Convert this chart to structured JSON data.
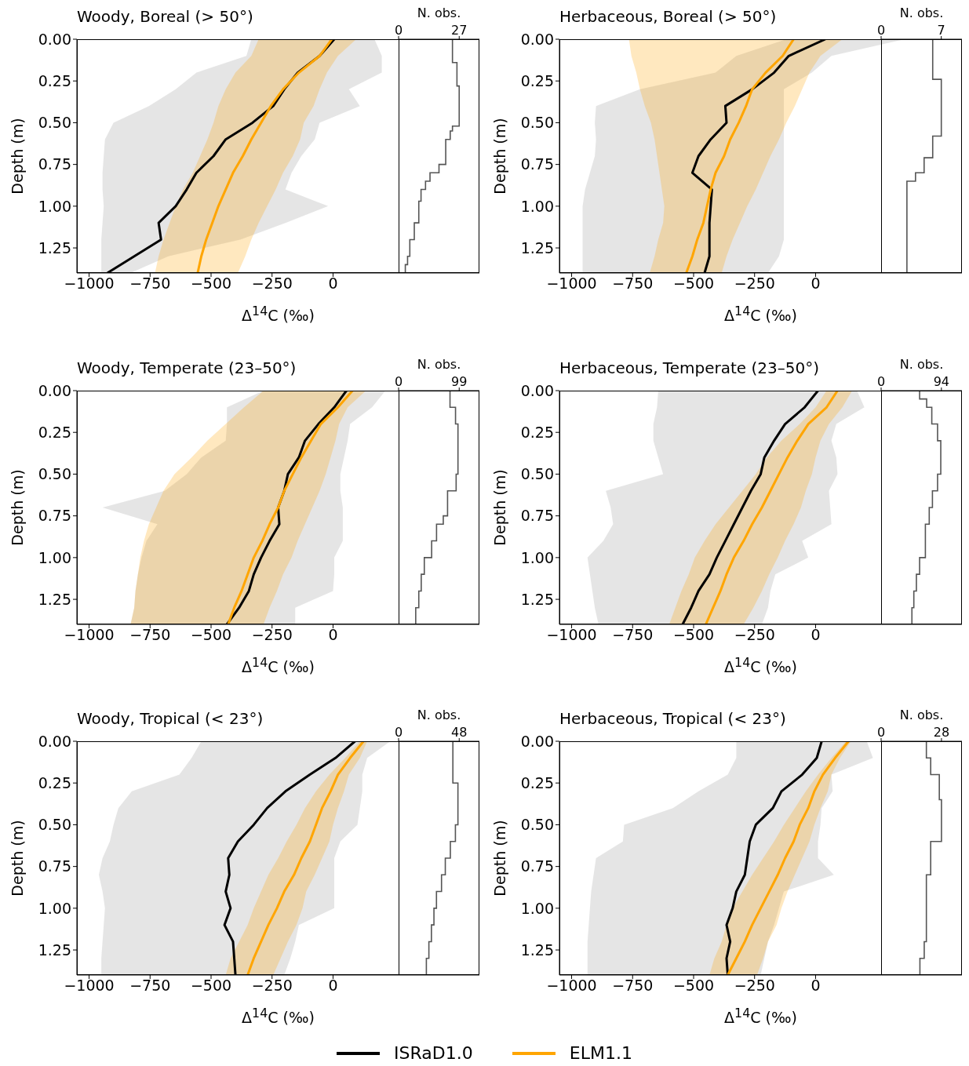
{
  "chart_data": [
    {
      "type": "line",
      "orientation": "horizontal",
      "title": "Woody, Boreal (> 50°)",
      "xlabel": "Δ$^{14}$C (‰)",
      "ylabel": "Depth (m)",
      "x": [
        0,
        0.1,
        0.2,
        0.3,
        0.4,
        0.5,
        0.6,
        0.7,
        0.8,
        0.9,
        1.0,
        1.1,
        1.2,
        1.3,
        1.4
      ],
      "xlim": [
        -1050,
        600
      ],
      "xticks": [
        {
          "value": -1000,
          "label": "−1000"
        },
        {
          "value": -750,
          "label": "−750"
        },
        {
          "value": -500,
          "label": "−500"
        },
        {
          "value": -250,
          "label": "−250"
        },
        0
      ],
      "ylim": [
        1.4,
        0
      ],
      "yticks": [
        {
          "value": 0,
          "label": "0.00"
        },
        {
          "value": 0.25,
          "label": "0.25"
        },
        {
          "value": 0.5,
          "label": "0.50"
        },
        {
          "value": 0.75,
          "label": "0.75"
        },
        {
          "value": 1,
          "label": "1.00"
        },
        {
          "value": 1.25,
          "label": "1.25"
        }
      ],
      "series": [
        {
          "color": "#000000",
          "values": [
            5,
            -55,
            -145,
            -200,
            -245,
            -330,
            -440,
            -490,
            -560,
            -600,
            -645,
            -715,
            -705,
            -815,
            -925
          ],
          "lower": [
            -335,
            -355,
            -560,
            -645,
            -755,
            -900,
            -935,
            -940,
            -945,
            -945,
            -940,
            -945,
            -950,
            -950,
            -950
          ],
          "upper": [
            170,
            200,
            200,
            65,
            110,
            -55,
            -75,
            -130,
            -170,
            -195,
            -20,
            -195,
            -380,
            -675,
            -830
          ]
        },
        {
          "color": "#ffa500",
          "values": [
            -5,
            -55,
            -140,
            -205,
            -255,
            -295,
            -335,
            -370,
            -410,
            -440,
            -470,
            -495,
            -520,
            -540,
            -555
          ],
          "lower": [
            -305,
            -335,
            -400,
            -440,
            -470,
            -490,
            -515,
            -545,
            -575,
            -615,
            -645,
            -670,
            -695,
            -715,
            -730
          ],
          "upper": [
            95,
            20,
            -25,
            -55,
            -80,
            -120,
            -135,
            -165,
            -205,
            -235,
            -270,
            -305,
            -335,
            -360,
            -390
          ]
        }
      ]
    },
    {
      "type": "step",
      "orientation": "horizontal",
      "title": "N. obs.",
      "xlim": [
        0,
        36
      ],
      "xticks": [
        0,
        27
      ],
      "ylim": [
        1.4,
        0
      ],
      "tick_labels": "x",
      "series": [
        {
          "color": "#555555",
          "x": [
            0,
            0.14,
            0.28,
            0.52,
            0.55,
            0.6,
            0.75,
            0.8,
            0.85,
            0.9,
            0.97,
            1.1,
            1.2,
            1.3,
            1.35,
            1.4
          ],
          "values": [
            24,
            26,
            27,
            24,
            23,
            21,
            18,
            14,
            12,
            10,
            9,
            7,
            5,
            4,
            3,
            3
          ]
        }
      ]
    },
    {
      "type": "line",
      "orientation": "horizontal",
      "title": "Herbaceous, Boreal (> 50°)",
      "xlabel": "Δ$^{14}$C (‰)",
      "ylabel": "Depth (m)",
      "x": [
        0,
        0.1,
        0.2,
        0.3,
        0.4,
        0.5,
        0.6,
        0.7,
        0.8,
        0.9,
        1.0,
        1.1,
        1.2,
        1.3,
        1.4
      ],
      "xlim": [
        -1050,
        600
      ],
      "xticks": [
        {
          "value": -1000,
          "label": "−1000"
        },
        {
          "value": -750,
          "label": "−750"
        },
        {
          "value": -500,
          "label": "−500"
        },
        {
          "value": -250,
          "label": "−250"
        },
        0
      ],
      "ylim": [
        1.4,
        0
      ],
      "yticks": [
        {
          "value": 0,
          "label": "0.00"
        },
        {
          "value": 0.25,
          "label": "0.25"
        },
        {
          "value": 0.5,
          "label": "0.50"
        },
        {
          "value": 0.75,
          "label": "0.75"
        },
        {
          "value": 1,
          "label": "1.00"
        },
        {
          "value": 1.25,
          "label": "1.25"
        }
      ],
      "series": [
        {
          "color": "#000000",
          "values": [
            40,
            -110,
            -170,
            -260,
            -370,
            -365,
            -430,
            -480,
            -505,
            -425,
            -430,
            -435,
            -435,
            -435,
            -455
          ],
          "lower": [
            -120,
            -325,
            -410,
            -720,
            -900,
            -905,
            -900,
            -905,
            -925,
            -945,
            -955,
            -955,
            -955,
            -955,
            -955
          ],
          "upper": [
            365,
            65,
            -15,
            -130,
            -130,
            -130,
            -130,
            -130,
            -130,
            -130,
            -130,
            -130,
            -130,
            -150,
            -195
          ]
        },
        {
          "color": "#ffa500",
          "values": [
            -90,
            -135,
            -205,
            -260,
            -285,
            -315,
            -350,
            -375,
            -410,
            -430,
            -445,
            -460,
            -485,
            -505,
            -530
          ],
          "lower": [
            -765,
            -755,
            -735,
            -720,
            -700,
            -675,
            -660,
            -650,
            -640,
            -630,
            -620,
            -625,
            -645,
            -660,
            -680
          ],
          "upper": [
            110,
            20,
            -25,
            -55,
            -85,
            -120,
            -150,
            -185,
            -215,
            -245,
            -280,
            -310,
            -340,
            -365,
            -385
          ]
        }
      ]
    },
    {
      "type": "step",
      "orientation": "horizontal",
      "title": "N. obs.",
      "xlim": [
        0,
        9.4
      ],
      "xticks": [
        0,
        7
      ],
      "ylim": [
        1.4,
        0
      ],
      "tick_labels": "x",
      "series": [
        {
          "color": "#555555",
          "x": [
            0,
            0.24,
            0.58,
            0.71,
            0.8,
            0.85,
            1.4
          ],
          "values": [
            6,
            7,
            6,
            5,
            4,
            3,
            3
          ]
        }
      ]
    },
    {
      "type": "line",
      "orientation": "horizontal",
      "title": "Woody, Temperate (23–50°)",
      "xlabel": "Δ$^{14}$C (‰)",
      "ylabel": "Depth (m)",
      "x": [
        0,
        0.1,
        0.2,
        0.3,
        0.4,
        0.5,
        0.6,
        0.7,
        0.8,
        0.9,
        1.0,
        1.1,
        1.2,
        1.3,
        1.4
      ],
      "xlim": [
        -1050,
        600
      ],
      "xticks": [
        {
          "value": -1000,
          "label": "−1000"
        },
        {
          "value": -750,
          "label": "−750"
        },
        {
          "value": -500,
          "label": "−500"
        },
        {
          "value": -250,
          "label": "−250"
        },
        0
      ],
      "ylim": [
        1.4,
        0
      ],
      "yticks": [
        {
          "value": 0,
          "label": "0.00"
        },
        {
          "value": 0.25,
          "label": "0.25"
        },
        {
          "value": 0.5,
          "label": "0.50"
        },
        {
          "value": 0.75,
          "label": "0.75"
        },
        {
          "value": 1,
          "label": "1.00"
        },
        {
          "value": 1.25,
          "label": "1.25"
        }
      ],
      "series": [
        {
          "color": "#000000",
          "values": [
            55,
            5,
            -60,
            -115,
            -140,
            -185,
            -200,
            -225,
            -220,
            -260,
            -295,
            -325,
            -345,
            -385,
            -435
          ],
          "lower": [
            -285,
            -435,
            -435,
            -440,
            -540,
            -600,
            -690,
            -945,
            -720,
            -765,
            -785,
            -800,
            -810,
            -815,
            -830
          ],
          "upper": [
            215,
            160,
            70,
            60,
            45,
            30,
            30,
            40,
            40,
            40,
            5,
            5,
            0,
            -155,
            -155
          ]
        },
        {
          "color": "#ffa500",
          "values": [
            80,
            20,
            -50,
            -90,
            -130,
            -165,
            -200,
            -225,
            -260,
            -290,
            -325,
            -350,
            -375,
            -405,
            -430
          ],
          "lower": [
            -285,
            -365,
            -440,
            -515,
            -580,
            -650,
            -695,
            -725,
            -755,
            -775,
            -790,
            -800,
            -810,
            -815,
            -830
          ],
          "upper": [
            135,
            60,
            25,
            10,
            -10,
            -30,
            -55,
            -85,
            -115,
            -145,
            -170,
            -205,
            -230,
            -260,
            -285
          ]
        }
      ]
    },
    {
      "type": "step",
      "orientation": "horizontal",
      "title": "N. obs.",
      "xlim": [
        0,
        132
      ],
      "xticks": [
        0,
        99
      ],
      "ylim": [
        1.4,
        0
      ],
      "tick_labels": "x",
      "series": [
        {
          "color": "#555555",
          "x": [
            0,
            0.1,
            0.2,
            0.5,
            0.6,
            0.75,
            0.8,
            0.9,
            1.0,
            1.1,
            1.2,
            1.3,
            1.4
          ],
          "values": [
            84,
            93,
            97,
            94,
            80,
            73,
            62,
            54,
            42,
            37,
            33,
            28,
            28
          ]
        }
      ]
    },
    {
      "type": "line",
      "orientation": "horizontal",
      "title": "Herbaceous, Temperate (23–50°)",
      "xlabel": "Δ$^{14}$C (‰)",
      "ylabel": "Depth (m)",
      "x": [
        0,
        0.1,
        0.2,
        0.3,
        0.4,
        0.5,
        0.6,
        0.7,
        0.8,
        0.9,
        1.0,
        1.1,
        1.2,
        1.3,
        1.4
      ],
      "xlim": [
        -1050,
        600
      ],
      "xticks": [
        {
          "value": -1000,
          "label": "−1000"
        },
        {
          "value": -750,
          "label": "−750"
        },
        {
          "value": -500,
          "label": "−500"
        },
        {
          "value": -250,
          "label": "−250"
        },
        0
      ],
      "ylim": [
        1.4,
        0
      ],
      "yticks": [
        {
          "value": 0,
          "label": "0.00"
        },
        {
          "value": 0.25,
          "label": "0.25"
        },
        {
          "value": 0.5,
          "label": "0.50"
        },
        {
          "value": 0.75,
          "label": "0.75"
        },
        {
          "value": 1,
          "label": "1.00"
        },
        {
          "value": 1.25,
          "label": "1.25"
        }
      ],
      "series": [
        {
          "color": "#000000",
          "values": [
            10,
            -45,
            -125,
            -170,
            -210,
            -225,
            -265,
            -300,
            -335,
            -370,
            -405,
            -435,
            -480,
            -510,
            -545
          ],
          "lower": [
            -645,
            -650,
            -665,
            -665,
            -645,
            -625,
            -860,
            -840,
            -830,
            -870,
            -935,
            -925,
            -915,
            -905,
            -890
          ],
          "upper": [
            170,
            200,
            85,
            65,
            85,
            90,
            55,
            60,
            65,
            -55,
            -30,
            -165,
            -185,
            -195,
            -220
          ]
        },
        {
          "color": "#ffa500",
          "values": [
            90,
            45,
            -30,
            -75,
            -115,
            -150,
            -185,
            -220,
            -260,
            -295,
            -335,
            -365,
            -390,
            -420,
            -450
          ],
          "lower": [
            45,
            0,
            -65,
            -140,
            -200,
            -245,
            -300,
            -355,
            -410,
            -455,
            -495,
            -520,
            -550,
            -575,
            -600
          ],
          "upper": [
            150,
            110,
            55,
            20,
            0,
            -15,
            -40,
            -60,
            -90,
            -125,
            -155,
            -190,
            -220,
            -255,
            -295
          ]
        }
      ]
    },
    {
      "type": "step",
      "orientation": "horizontal",
      "title": "N. obs.",
      "xlim": [
        0,
        126
      ],
      "xticks": [
        0,
        94
      ],
      "ylim": [
        1.4,
        0
      ],
      "tick_labels": "x",
      "series": [
        {
          "color": "#555555",
          "x": [
            0,
            0.05,
            0.1,
            0.2,
            0.3,
            0.5,
            0.6,
            0.7,
            0.8,
            1.0,
            1.1,
            1.2,
            1.3,
            1.4
          ],
          "values": [
            60,
            71,
            79,
            88,
            93,
            88,
            80,
            75,
            69,
            60,
            55,
            51,
            48,
            48
          ]
        }
      ]
    },
    {
      "type": "line",
      "orientation": "horizontal",
      "title": "Woody, Tropical (< 23°)",
      "xlabel": "Δ$^{14}$C (‰)",
      "ylabel": "Depth (m)",
      "x": [
        0,
        0.1,
        0.2,
        0.3,
        0.4,
        0.5,
        0.6,
        0.7,
        0.8,
        0.9,
        1.0,
        1.1,
        1.2,
        1.3,
        1.4
      ],
      "xlim": [
        -1050,
        600
      ],
      "xticks": [
        {
          "value": -1000,
          "label": "−1000"
        },
        {
          "value": -750,
          "label": "−750"
        },
        {
          "value": -500,
          "label": "−500"
        },
        {
          "value": -250,
          "label": "−250"
        },
        0
      ],
      "ylim": [
        1.4,
        0
      ],
      "yticks": [
        {
          "value": 0,
          "label": "0.00"
        },
        {
          "value": 0.25,
          "label": "0.25"
        },
        {
          "value": 0.5,
          "label": "0.50"
        },
        {
          "value": 0.75,
          "label": "0.75"
        },
        {
          "value": 1,
          "label": "1.00"
        },
        {
          "value": 1.25,
          "label": "1.25"
        }
      ],
      "series": [
        {
          "color": "#000000",
          "values": [
            90,
            10,
            -95,
            -195,
            -270,
            -325,
            -390,
            -430,
            -425,
            -440,
            -420,
            -445,
            -410,
            -405,
            -400
          ],
          "lower": [
            -540,
            -580,
            -630,
            -825,
            -880,
            -900,
            -915,
            -945,
            -960,
            -945,
            -935,
            -940,
            -945,
            -950,
            -950
          ],
          "upper": [
            235,
            140,
            120,
            120,
            110,
            100,
            30,
            5,
            5,
            5,
            5,
            -140,
            -155,
            -175,
            -200
          ]
        },
        {
          "color": "#ffa500",
          "values": [
            125,
            70,
            20,
            -10,
            -45,
            -70,
            -95,
            -130,
            -160,
            -200,
            -230,
            -265,
            -295,
            -325,
            -350
          ],
          "lower": [
            110,
            50,
            -15,
            -70,
            -115,
            -150,
            -190,
            -225,
            -265,
            -295,
            -325,
            -350,
            -385,
            -420,
            -440
          ],
          "upper": [
            140,
            110,
            65,
            45,
            20,
            0,
            -15,
            -45,
            -75,
            -110,
            -125,
            -150,
            -185,
            -215,
            -245
          ]
        }
      ]
    },
    {
      "type": "step",
      "orientation": "horizontal",
      "title": "N. obs.",
      "xlim": [
        0,
        64
      ],
      "xticks": [
        0,
        48
      ],
      "ylim": [
        1.4,
        0
      ],
      "tick_labels": "x",
      "series": [
        {
          "color": "#555555",
          "x": [
            0,
            0.25,
            0.5,
            0.6,
            0.7,
            0.8,
            0.9,
            1.0,
            1.1,
            1.2,
            1.3,
            1.4
          ],
          "values": [
            43,
            47,
            45,
            41,
            37,
            34,
            30,
            28,
            26,
            24,
            22,
            22
          ]
        }
      ]
    },
    {
      "type": "line",
      "orientation": "horizontal",
      "title": "Herbaceous, Tropical (< 23°)",
      "xlabel": "Δ$^{14}$C (‰)",
      "ylabel": "Depth (m)",
      "legend": "bottom",
      "x": [
        0,
        0.1,
        0.2,
        0.3,
        0.4,
        0.5,
        0.6,
        0.7,
        0.8,
        0.9,
        1.0,
        1.1,
        1.2,
        1.3,
        1.4
      ],
      "xlim": [
        -1050,
        600
      ],
      "xticks": [
        {
          "value": -1000,
          "label": "−1000"
        },
        {
          "value": -750,
          "label": "−750"
        },
        {
          "value": -500,
          "label": "−500"
        },
        {
          "value": -250,
          "label": "−250"
        },
        0
      ],
      "ylim": [
        1.4,
        0
      ],
      "yticks": [
        {
          "value": 0,
          "label": "0.00"
        },
        {
          "value": 0.25,
          "label": "0.25"
        },
        {
          "value": 0.5,
          "label": "0.50"
        },
        {
          "value": 0.75,
          "label": "0.75"
        },
        {
          "value": 1,
          "label": "1.00"
        },
        {
          "value": 1.25,
          "label": "1.25"
        }
      ],
      "series": [
        {
          "name": "ISRaD1.0",
          "color": "#000000",
          "values": [
            25,
            5,
            -55,
            -140,
            -175,
            -245,
            -270,
            -280,
            -290,
            -325,
            -340,
            -365,
            -350,
            -365,
            -360
          ],
          "lower": [
            -325,
            -325,
            -360,
            -480,
            -585,
            -785,
            -790,
            -900,
            -910,
            -920,
            -925,
            -930,
            -935,
            -935,
            -935
          ],
          "upper": [
            210,
            235,
            65,
            70,
            25,
            20,
            10,
            10,
            75,
            -130,
            -150,
            -170,
            -195,
            -210,
            -225
          ]
        },
        {
          "name": "ELM1.1",
          "color": "#ffa500",
          "values": [
            135,
            80,
            30,
            -5,
            -30,
            -65,
            -90,
            -125,
            -155,
            -190,
            -225,
            -260,
            -290,
            -325,
            -360
          ],
          "lower": [
            125,
            65,
            10,
            -40,
            -85,
            -130,
            -170,
            -215,
            -260,
            -300,
            -340,
            -365,
            -385,
            -415,
            -435
          ],
          "upper": [
            145,
            100,
            65,
            50,
            20,
            -5,
            -25,
            -55,
            -85,
            -115,
            -140,
            -160,
            -195,
            -215,
            -240
          ]
        }
      ]
    },
    {
      "type": "step",
      "orientation": "horizontal",
      "title": "N. obs.",
      "xlim": [
        0,
        37.5
      ],
      "xticks": [
        0,
        28
      ],
      "ylim": [
        1.4,
        0
      ],
      "tick_labels": "x",
      "series": [
        {
          "color": "#555555",
          "x": [
            0,
            0.1,
            0.2,
            0.35,
            0.6,
            0.8,
            1.0,
            1.2,
            1.3,
            1.4
          ],
          "values": [
            21,
            23,
            27,
            28,
            23,
            21,
            21,
            20,
            18,
            18
          ]
        }
      ]
    }
  ]
}
